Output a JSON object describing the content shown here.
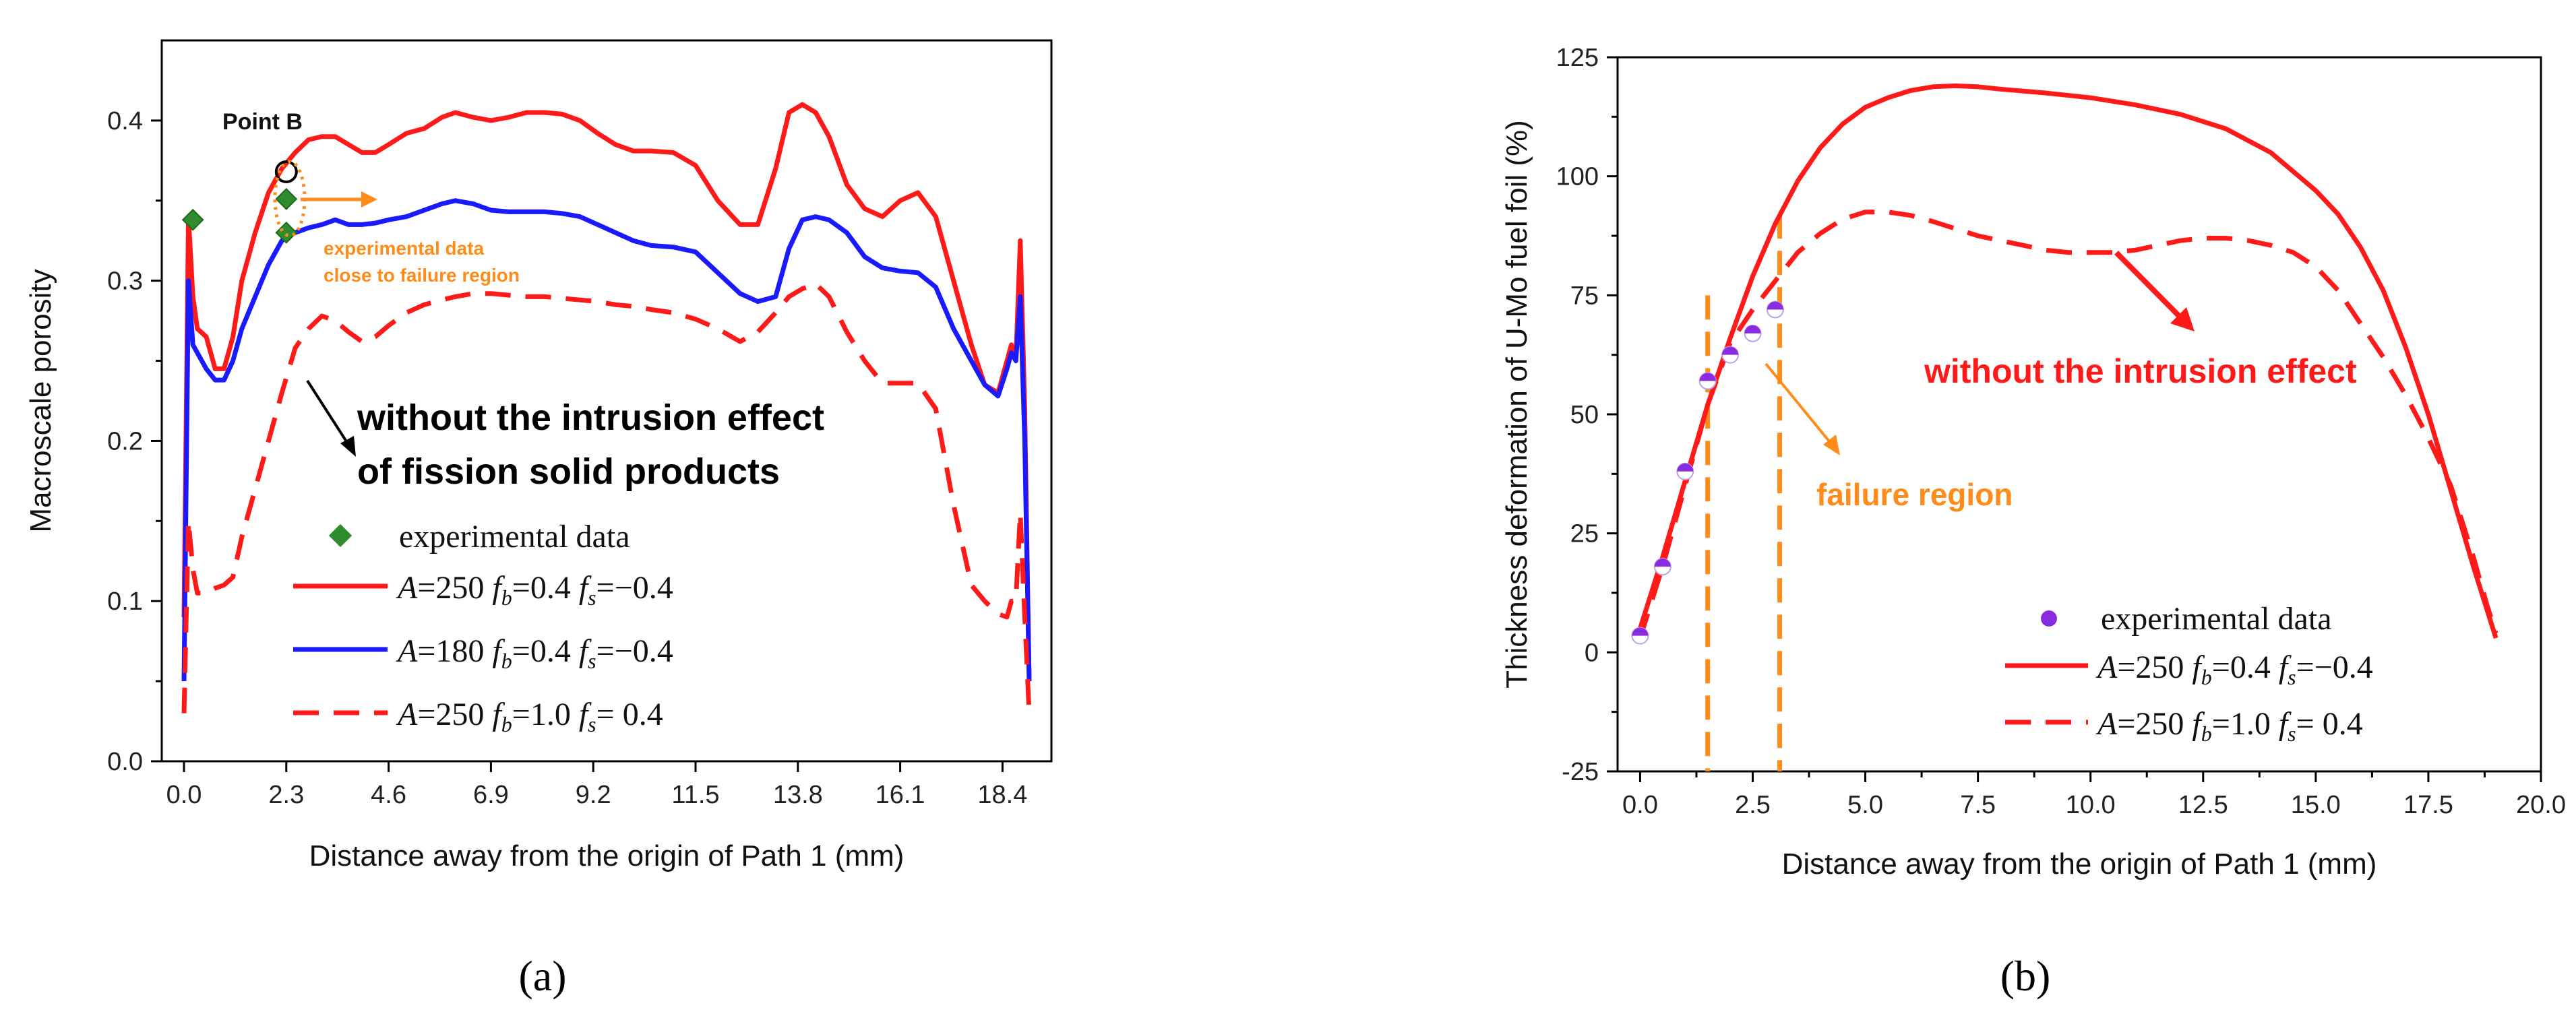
{
  "panel_labels": {
    "a": "(a)",
    "b": "(b)"
  },
  "colors": {
    "red": "#ff1a1a",
    "blue": "#1a1aff",
    "green": "#2e8b2e",
    "orange": "#ff8c1a",
    "purple": "#8a2be2"
  },
  "chart_data": [
    {
      "type": "line",
      "panel": "a",
      "xlabel": "Distance away from the origin of Path 1 (mm)",
      "ylabel": "Macroscale porosity",
      "xlim": [
        -0.5,
        19.5
      ],
      "ylim": [
        0.0,
        0.45
      ],
      "xticks": [
        0.0,
        2.3,
        4.6,
        6.9,
        9.2,
        11.5,
        13.8,
        16.1,
        18.4
      ],
      "xtick_labels": [
        "0.0",
        "2.3",
        "4.6",
        "6.9",
        "9.2",
        "11.5",
        "13.8",
        "16.1",
        "18.4"
      ],
      "yticks": [
        0.0,
        0.1,
        0.2,
        0.3,
        0.4
      ],
      "ytick_labels": [
        "0.0",
        "0.1",
        "0.2",
        "0.3",
        "0.4"
      ],
      "legend_placement": "bottom-left",
      "legend": {
        "experimental": "experimental data",
        "series": [
          {
            "A": "A",
            "eq1": "=250 ",
            "fb": "f",
            "b": "b",
            "eq2": "=0.4 ",
            "fs": "f",
            "s": "s",
            "eq3": "=−0.4"
          },
          {
            "A": "A",
            "eq1": "=180 ",
            "fb": "f",
            "b": "b",
            "eq2": "=0.4 ",
            "fs": "f",
            "s": "s",
            "eq3": "=−0.4"
          },
          {
            "A": "A",
            "eq1": "=250 ",
            "fb": "f",
            "b": "b",
            "eq2": "=1.0 ",
            "fs": "f",
            "s": "s",
            "eq3": "=  0.4"
          }
        ]
      },
      "annotations": {
        "point_b": "Point B",
        "exp_line1": "experimental data",
        "exp_line2": "close to failure region",
        "intrusion_line1": "without the intrusion effect",
        "intrusion_line2": "of fission solid products"
      },
      "series": [
        {
          "color": "#ff1a1a",
          "dash": false,
          "x": [
            0.0,
            0.1,
            0.2,
            0.3,
            0.5,
            0.7,
            0.9,
            1.1,
            1.3,
            1.6,
            1.9,
            2.2,
            2.5,
            2.8,
            3.1,
            3.4,
            3.7,
            4.0,
            4.3,
            4.6,
            5.0,
            5.4,
            5.8,
            6.1,
            6.5,
            6.9,
            7.3,
            7.7,
            8.1,
            8.5,
            8.9,
            9.3,
            9.7,
            10.1,
            10.5,
            11.0,
            11.5,
            12.0,
            12.5,
            12.9,
            13.3,
            13.6,
            13.9,
            14.2,
            14.5,
            14.9,
            15.3,
            15.7,
            16.1,
            16.5,
            16.9,
            17.3,
            17.7,
            18.0,
            18.3,
            18.5,
            18.6,
            18.7,
            18.8,
            18.9,
            19.0
          ],
          "y": [
            0.09,
            0.34,
            0.29,
            0.27,
            0.265,
            0.245,
            0.245,
            0.265,
            0.3,
            0.33,
            0.355,
            0.37,
            0.38,
            0.388,
            0.39,
            0.39,
            0.385,
            0.38,
            0.38,
            0.385,
            0.392,
            0.395,
            0.402,
            0.405,
            0.402,
            0.4,
            0.402,
            0.405,
            0.405,
            0.404,
            0.4,
            0.392,
            0.385,
            0.381,
            0.381,
            0.38,
            0.372,
            0.35,
            0.335,
            0.335,
            0.37,
            0.405,
            0.41,
            0.405,
            0.39,
            0.36,
            0.345,
            0.34,
            0.35,
            0.355,
            0.34,
            0.3,
            0.26,
            0.235,
            0.23,
            0.25,
            0.26,
            0.25,
            0.325,
            0.22,
            0.05
          ]
        },
        {
          "color": "#1a1aff",
          "dash": false,
          "x": [
            0.0,
            0.1,
            0.2,
            0.3,
            0.5,
            0.7,
            0.9,
            1.1,
            1.3,
            1.6,
            1.9,
            2.2,
            2.5,
            2.8,
            3.1,
            3.4,
            3.7,
            4.0,
            4.3,
            4.6,
            5.0,
            5.4,
            5.8,
            6.1,
            6.5,
            6.9,
            7.3,
            7.7,
            8.1,
            8.5,
            8.9,
            9.3,
            9.7,
            10.1,
            10.5,
            11.0,
            11.5,
            12.0,
            12.5,
            12.9,
            13.3,
            13.6,
            13.9,
            14.2,
            14.5,
            14.9,
            15.3,
            15.7,
            16.1,
            16.5,
            16.9,
            17.3,
            17.7,
            18.0,
            18.3,
            18.5,
            18.6,
            18.7,
            18.8,
            18.9,
            19.0
          ],
          "y": [
            0.05,
            0.3,
            0.26,
            0.255,
            0.245,
            0.238,
            0.238,
            0.25,
            0.27,
            0.29,
            0.31,
            0.325,
            0.33,
            0.333,
            0.335,
            0.338,
            0.335,
            0.335,
            0.336,
            0.338,
            0.34,
            0.344,
            0.348,
            0.35,
            0.348,
            0.344,
            0.343,
            0.343,
            0.343,
            0.342,
            0.34,
            0.335,
            0.33,
            0.325,
            0.322,
            0.321,
            0.318,
            0.305,
            0.292,
            0.287,
            0.29,
            0.32,
            0.338,
            0.34,
            0.338,
            0.33,
            0.315,
            0.308,
            0.306,
            0.305,
            0.296,
            0.27,
            0.25,
            0.235,
            0.228,
            0.245,
            0.255,
            0.25,
            0.29,
            0.2,
            0.05
          ]
        },
        {
          "color": "#ff1a1a",
          "dash": true,
          "x": [
            0.0,
            0.1,
            0.2,
            0.3,
            0.5,
            0.7,
            0.9,
            1.1,
            1.3,
            1.6,
            1.9,
            2.2,
            2.5,
            2.8,
            3.1,
            3.4,
            3.7,
            4.0,
            4.3,
            4.6,
            5.0,
            5.4,
            5.8,
            6.1,
            6.5,
            6.9,
            7.3,
            7.7,
            8.1,
            8.5,
            8.9,
            9.3,
            9.7,
            10.1,
            10.5,
            11.0,
            11.5,
            12.0,
            12.5,
            12.9,
            13.3,
            13.6,
            13.9,
            14.2,
            14.5,
            14.9,
            15.3,
            15.7,
            16.1,
            16.5,
            16.9,
            17.3,
            17.7,
            18.0,
            18.3,
            18.5,
            18.6,
            18.7,
            18.8,
            18.9,
            19.0
          ],
          "y": [
            0.03,
            0.15,
            0.12,
            0.105,
            0.105,
            0.108,
            0.11,
            0.115,
            0.14,
            0.17,
            0.2,
            0.23,
            0.258,
            0.27,
            0.278,
            0.275,
            0.268,
            0.262,
            0.265,
            0.272,
            0.28,
            0.285,
            0.288,
            0.29,
            0.292,
            0.292,
            0.291,
            0.29,
            0.29,
            0.289,
            0.288,
            0.287,
            0.285,
            0.284,
            0.282,
            0.28,
            0.276,
            0.27,
            0.262,
            0.268,
            0.28,
            0.29,
            0.295,
            0.298,
            0.29,
            0.268,
            0.25,
            0.236,
            0.236,
            0.236,
            0.22,
            0.16,
            0.11,
            0.1,
            0.092,
            0.09,
            0.1,
            0.1,
            0.155,
            0.09,
            0.03
          ]
        }
      ],
      "experimental_points": [
        {
          "x": 0.2,
          "y": 0.338
        },
        {
          "x": 2.3,
          "y": 0.351
        },
        {
          "x": 2.3,
          "y": 0.33
        }
      ],
      "point_b": {
        "x": 2.3,
        "y": 0.368
      }
    },
    {
      "type": "line",
      "panel": "b",
      "xlabel": "Distance away from the origin of Path 1 (mm)",
      "ylabel": "Thickness deformation of U-Mo fuel foil (%)",
      "xlim": [
        -0.5,
        20.0
      ],
      "ylim": [
        -25,
        125
      ],
      "xticks": [
        0.0,
        2.5,
        5.0,
        7.5,
        10.0,
        12.5,
        15.0,
        17.5,
        20.0
      ],
      "xtick_labels": [
        "0.0",
        "2.5",
        "5.0",
        "7.5",
        "10.0",
        "12.5",
        "15.0",
        "17.5",
        "20.0"
      ],
      "yticks": [
        -25,
        0,
        25,
        50,
        75,
        100,
        125
      ],
      "ytick_labels": [
        "-25",
        "0",
        "25",
        "50",
        "75",
        "100",
        "125"
      ],
      "legend_placement": "bottom-center",
      "legend": {
        "experimental": "experimental data",
        "series": [
          {
            "A": "A",
            "eq1": "=250 ",
            "fb": "f",
            "b": "b",
            "eq2": "=0.4 ",
            "fs": "f",
            "s": "s",
            "eq3": "=−0.4"
          },
          {
            "A": "A",
            "eq1": "=250 ",
            "fb": "f",
            "b": "b",
            "eq2": "=1.0 ",
            "fs": "f",
            "s": "s",
            "eq3": "=  0.4"
          }
        ]
      },
      "annotations": {
        "intrusion": "without the intrusion effect",
        "failure": "failure region"
      },
      "failure_region_x": [
        1.5,
        3.1
      ],
      "series": [
        {
          "color": "#ff1a1a",
          "dash": false,
          "x": [
            0.0,
            0.5,
            1.0,
            1.5,
            2.0,
            2.5,
            3.0,
            3.5,
            4.0,
            4.5,
            5.0,
            5.5,
            6.0,
            6.5,
            7.0,
            7.5,
            8.0,
            9.0,
            10.0,
            11.0,
            12.0,
            13.0,
            14.0,
            15.0,
            15.5,
            16.0,
            16.5,
            17.0,
            17.5,
            18.0,
            18.5,
            18.8,
            19.0
          ],
          "y": [
            5,
            20,
            36,
            52,
            66,
            79,
            90,
            99,
            106,
            111,
            114.5,
            116.5,
            118,
            118.8,
            119,
            118.8,
            118.3,
            117.5,
            116.5,
            115,
            113,
            110,
            105,
            97,
            92,
            85,
            76,
            64,
            50,
            34,
            18,
            9,
            3
          ]
        },
        {
          "color": "#ff1a1a",
          "dash": true,
          "x": [
            0.0,
            0.5,
            1.0,
            1.5,
            2.0,
            2.5,
            3.0,
            3.5,
            4.0,
            4.5,
            5.0,
            5.5,
            6.0,
            6.5,
            7.0,
            7.5,
            8.0,
            8.5,
            9.0,
            9.5,
            10.0,
            10.5,
            11.0,
            11.5,
            12.0,
            12.5,
            13.0,
            13.5,
            14.0,
            14.5,
            15.0,
            15.5,
            16.0,
            16.5,
            17.0,
            17.5,
            18.0,
            18.5,
            18.8,
            19.0
          ],
          "y": [
            3,
            18,
            35,
            52,
            65,
            72,
            78,
            84,
            88,
            91,
            92.5,
            92.5,
            91.8,
            90.5,
            89,
            87.5,
            86.5,
            85.5,
            84.5,
            84,
            84,
            84,
            84.5,
            85.5,
            86.5,
            87,
            87,
            86.5,
            85.5,
            84,
            81,
            76,
            69,
            62,
            54,
            45,
            35,
            20,
            10,
            4
          ]
        }
      ],
      "experimental_points": [
        {
          "x": 0.0,
          "y": 3.5
        },
        {
          "x": 0.5,
          "y": 18
        },
        {
          "x": 1.0,
          "y": 38
        },
        {
          "x": 1.5,
          "y": 57
        },
        {
          "x": 2.0,
          "y": 62.5
        },
        {
          "x": 2.5,
          "y": 67
        },
        {
          "x": 3.0,
          "y": 72
        }
      ]
    }
  ]
}
